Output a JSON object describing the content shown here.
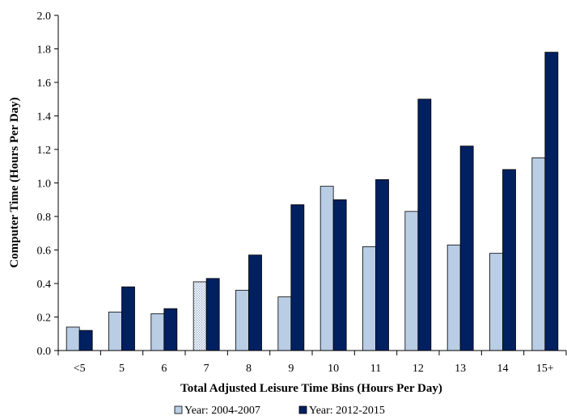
{
  "chart_data": {
    "type": "bar",
    "title": "",
    "xlabel": "Total Adjusted Leisure Time Bins (Hours Per Day)",
    "ylabel": "Computer Time (Hours Per Day)",
    "ylim": [
      0,
      2.0
    ],
    "yticks": [
      "0.0",
      "0.2",
      "0.4",
      "0.6",
      "0.8",
      "1.0",
      "1.2",
      "1.4",
      "1.6",
      "1.8",
      "2.0"
    ],
    "grid": false,
    "legend_position": "bottom",
    "categories": [
      "<5",
      "5",
      "6",
      "7",
      "8",
      "9",
      "10",
      "11",
      "12",
      "13",
      "14",
      "15+"
    ],
    "series": [
      {
        "name": "Year: 2004-2007",
        "color": "#b9cde5",
        "values": [
          0.14,
          0.23,
          0.22,
          0.41,
          0.36,
          0.32,
          0.98,
          0.62,
          0.83,
          0.63,
          0.58,
          1.15
        ]
      },
      {
        "name": "Year: 2012-2015",
        "color": "#002060",
        "values": [
          0.12,
          0.38,
          0.25,
          0.43,
          0.57,
          0.87,
          0.9,
          1.02,
          1.5,
          1.22,
          1.08,
          1.78
        ]
      }
    ],
    "hatched_bar": {
      "series": 0,
      "category": "7"
    }
  }
}
